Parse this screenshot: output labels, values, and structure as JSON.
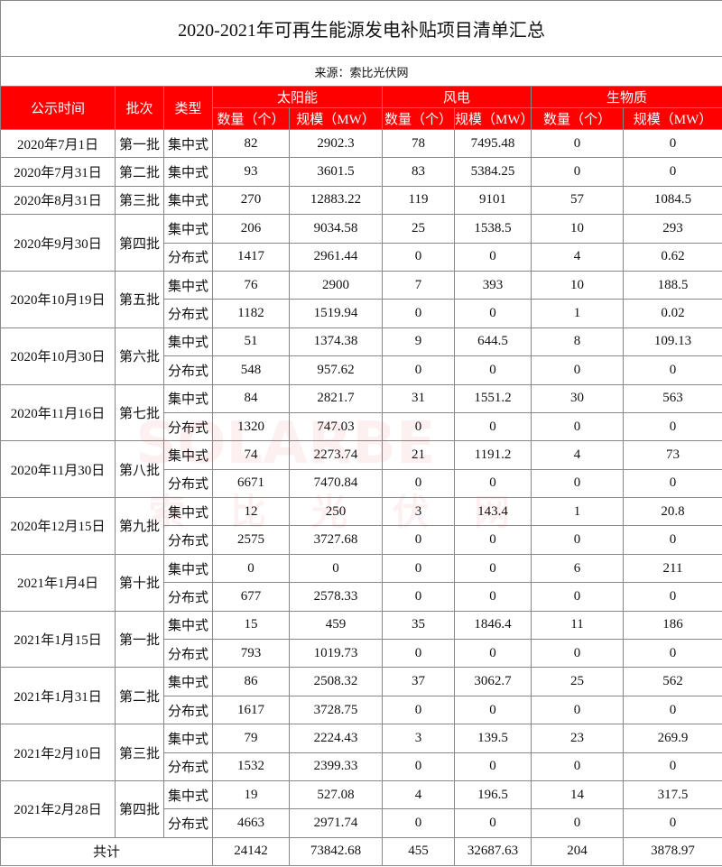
{
  "title": "2020-2021年可再生能源发电补贴项目清单汇总",
  "source": "来源：索比光伏网",
  "watermark": {
    "brand": "SOLARBE",
    "name": "索比光伏网"
  },
  "header": {
    "fixed": [
      "公示时间",
      "批次",
      "类型"
    ],
    "groups": [
      {
        "name": "太阳能",
        "columns": [
          "数量（个）",
          "规模（MW）"
        ]
      },
      {
        "name": "风电",
        "columns": [
          "数量（个）",
          "规模（MW）"
        ]
      },
      {
        "name": "生物质",
        "columns": [
          "数量（个）",
          "规模（MW）"
        ]
      }
    ]
  },
  "rows": [
    {
      "date": "2020年7月1日",
      "batch": "第一批",
      "entries": [
        {
          "type": "集中式",
          "values": [
            82,
            2902.3,
            78,
            7495.48,
            0,
            0
          ]
        }
      ]
    },
    {
      "date": "2020年7月31日",
      "batch": "第二批",
      "entries": [
        {
          "type": "集中式",
          "values": [
            93,
            3601.5,
            83,
            5384.25,
            0,
            0
          ]
        }
      ]
    },
    {
      "date": "2020年8月31日",
      "batch": "第三批",
      "entries": [
        {
          "type": "集中式",
          "values": [
            270,
            12883.22,
            119,
            9101,
            57,
            1084.5
          ]
        }
      ]
    },
    {
      "date": "2020年9月30日",
      "batch": "第四批",
      "entries": [
        {
          "type": "集中式",
          "values": [
            206,
            9034.58,
            25,
            1538.5,
            10,
            293
          ]
        },
        {
          "type": "分布式",
          "values": [
            1417,
            2961.44,
            0,
            0,
            4,
            0.62
          ]
        }
      ]
    },
    {
      "date": "2020年10月19日",
      "batch": "第五批",
      "entries": [
        {
          "type": "集中式",
          "values": [
            76,
            2900,
            7,
            393,
            10,
            188.5
          ]
        },
        {
          "type": "分布式",
          "values": [
            1182,
            1519.94,
            0,
            0,
            1,
            0.02
          ]
        }
      ]
    },
    {
      "date": "2020年10月30日",
      "batch": "第六批",
      "entries": [
        {
          "type": "集中式",
          "values": [
            51,
            1374.38,
            9,
            644.5,
            8,
            109.13
          ]
        },
        {
          "type": "分布式",
          "values": [
            548,
            957.62,
            0,
            0,
            0,
            0
          ]
        }
      ]
    },
    {
      "date": "2020年11月16日",
      "batch": "第七批",
      "entries": [
        {
          "type": "集中式",
          "values": [
            84,
            2821.7,
            31,
            1551.2,
            30,
            563
          ]
        },
        {
          "type": "分布式",
          "values": [
            1320,
            747.03,
            0,
            0,
            0,
            0
          ]
        }
      ]
    },
    {
      "date": "2020年11月30日",
      "batch": "第八批",
      "entries": [
        {
          "type": "集中式",
          "values": [
            74,
            2273.74,
            21,
            1191.2,
            4,
            73
          ]
        },
        {
          "type": "分布式",
          "values": [
            6671,
            7470.84,
            0,
            0,
            0,
            0
          ]
        }
      ]
    },
    {
      "date": "2020年12月15日",
      "batch": "第九批",
      "entries": [
        {
          "type": "集中式",
          "values": [
            12,
            250,
            3,
            143.4,
            1,
            20.8
          ]
        },
        {
          "type": "分布式",
          "values": [
            2575,
            3727.68,
            0,
            0,
            0,
            0
          ]
        }
      ]
    },
    {
      "date": "2021年1月4日",
      "batch": "第十批",
      "entries": [
        {
          "type": "集中式",
          "values": [
            0,
            0,
            0,
            0,
            6,
            211
          ]
        },
        {
          "type": "分布式",
          "values": [
            677,
            2578.33,
            0,
            0,
            0,
            0
          ]
        }
      ]
    },
    {
      "date": "2021年1月15日",
      "batch": "第一批",
      "entries": [
        {
          "type": "集中式",
          "values": [
            15,
            459,
            35,
            1846.4,
            11,
            186
          ]
        },
        {
          "type": "分布式",
          "values": [
            793,
            1019.73,
            0,
            0,
            0,
            0
          ]
        }
      ]
    },
    {
      "date": "2021年1月31日",
      "batch": "第二批",
      "entries": [
        {
          "type": "集中式",
          "values": [
            86,
            2508.32,
            37,
            3062.7,
            25,
            562
          ]
        },
        {
          "type": "分布式",
          "values": [
            1617,
            3728.75,
            0,
            0,
            0,
            0
          ]
        }
      ]
    },
    {
      "date": "2021年2月10日",
      "batch": "第三批",
      "entries": [
        {
          "type": "集中式",
          "values": [
            79,
            2224.43,
            3,
            139.5,
            23,
            269.9
          ]
        },
        {
          "type": "分布式",
          "values": [
            1532,
            2399.33,
            0,
            0,
            0,
            0
          ]
        }
      ]
    },
    {
      "date": "2021年2月28日",
      "batch": "第四批",
      "entries": [
        {
          "type": "集中式",
          "values": [
            19,
            527.08,
            4,
            196.5,
            14,
            317.5
          ]
        },
        {
          "type": "分布式",
          "values": [
            4663,
            2971.74,
            0,
            0,
            0,
            0
          ]
        }
      ]
    }
  ],
  "total": {
    "label": "共计",
    "values": [
      24142,
      73842.68,
      455,
      32687.63,
      204,
      3878.97
    ]
  }
}
